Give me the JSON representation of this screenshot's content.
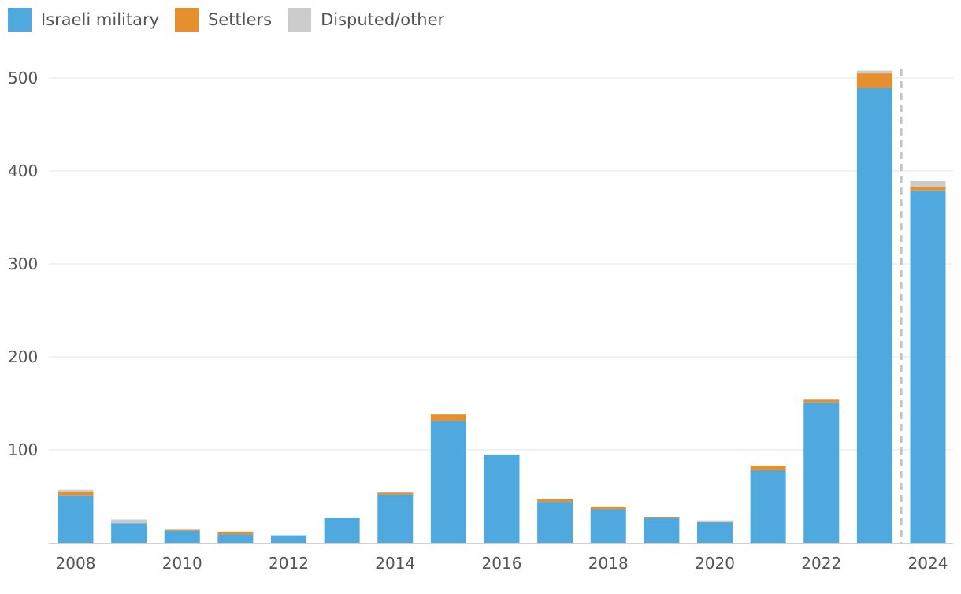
{
  "chart_data": {
    "type": "bar",
    "stacked": true,
    "categories": [
      "2008",
      "2009",
      "2010",
      "2011",
      "2012",
      "2013",
      "2014",
      "2015",
      "2016",
      "2017",
      "2018",
      "2019",
      "2020",
      "2021",
      "2022",
      "2023",
      "2024"
    ],
    "x_tick_labels": [
      "2008",
      "2010",
      "2012",
      "2014",
      "2016",
      "2018",
      "2020",
      "2022",
      "2024"
    ],
    "series": [
      {
        "name": "Israeli military",
        "color": "#4FA9DE",
        "values": [
          51,
          21,
          13,
          9,
          8,
          27,
          52,
          131,
          95,
          44,
          36,
          27,
          22,
          78,
          151,
          489,
          379
        ]
      },
      {
        "name": "Settlers",
        "color": "#E58F2F",
        "values": [
          4,
          0,
          1,
          3,
          0,
          0,
          2,
          7,
          0,
          3,
          3,
          1,
          0,
          5,
          3,
          16,
          4
        ]
      },
      {
        "name": "Disputed/other",
        "color": "#CCCCCC",
        "values": [
          2,
          4,
          0,
          0,
          0,
          0,
          1,
          0,
          0,
          0,
          0,
          0,
          2,
          0,
          0,
          3,
          6
        ]
      }
    ],
    "ylim": [
      0,
      530
    ],
    "yticks": [
      100,
      200,
      300,
      400,
      500
    ],
    "grid": true,
    "legend_position": "top-left",
    "annotation": "dashed vertical divider between 2023 and 2024"
  }
}
